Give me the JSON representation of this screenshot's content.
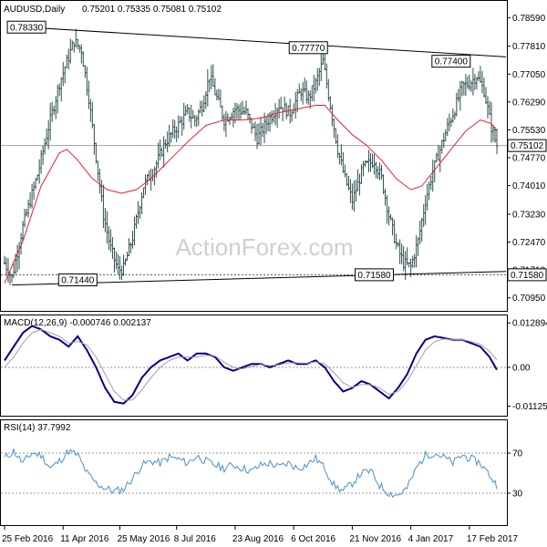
{
  "chart_data": [
    {
      "type": "bar",
      "subtype": "ohlc",
      "header": {
        "symbol": "AUDUSD,Daily",
        "ohlc": "0.75201 0.75335 0.75081 0.75102"
      },
      "watermark": "ActionForex.com",
      "ylim": [
        0.7067,
        0.7897
      ],
      "y_ticks": [
        {
          "value": 0.7859,
          "label": "0.78590"
        },
        {
          "value": 0.7781,
          "label": "0.77810"
        },
        {
          "value": 0.7705,
          "label": "0.77050"
        },
        {
          "value": 0.7629,
          "label": "0.76290"
        },
        {
          "value": 0.7553,
          "label": "0.75530"
        },
        {
          "value": 0.7477,
          "label": "0.74770"
        },
        {
          "value": 0.7401,
          "label": "0.74010"
        },
        {
          "value": 0.7323,
          "label": "0.73230"
        },
        {
          "value": 0.7247,
          "label": "0.72470"
        },
        {
          "value": 0.7171,
          "label": "0.71710"
        },
        {
          "value": 0.7095,
          "label": "0.70950"
        }
      ],
      "x_ticks": [
        "25 Feb 2016",
        "11 Apr 2016",
        "25 May 2016",
        "8 Jul 2016",
        "23 Aug 2016",
        "6 Oct 2016",
        "21 Nov 2016",
        "4 Jan 2017",
        "17 Feb 2017"
      ],
      "x_tick_index": [
        0,
        32,
        63,
        94,
        126,
        158,
        190,
        222,
        254
      ],
      "bar_count": 270,
      "price_anchors": [
        [
          0,
          0.719
        ],
        [
          4,
          0.715
        ],
        [
          10,
          0.729
        ],
        [
          18,
          0.743
        ],
        [
          24,
          0.756
        ],
        [
          30,
          0.768
        ],
        [
          38,
          0.7795
        ],
        [
          42,
          0.777
        ],
        [
          46,
          0.764
        ],
        [
          50,
          0.748
        ],
        [
          54,
          0.732
        ],
        [
          58,
          0.723
        ],
        [
          62,
          0.717
        ],
        [
          65,
          0.7175
        ],
        [
          70,
          0.726
        ],
        [
          76,
          0.74
        ],
        [
          82,
          0.745
        ],
        [
          88,
          0.752
        ],
        [
          94,
          0.756
        ],
        [
          100,
          0.76
        ],
        [
          104,
          0.758
        ],
        [
          108,
          0.762
        ],
        [
          112,
          0.77
        ],
        [
          116,
          0.764
        ],
        [
          120,
          0.758
        ],
        [
          126,
          0.761
        ],
        [
          132,
          0.76
        ],
        [
          138,
          0.753
        ],
        [
          144,
          0.758
        ],
        [
          150,
          0.762
        ],
        [
          156,
          0.76
        ],
        [
          162,
          0.766
        ],
        [
          166,
          0.764
        ],
        [
          170,
          0.768
        ],
        [
          174,
          0.774
        ],
        [
          178,
          0.762
        ],
        [
          182,
          0.75
        ],
        [
          186,
          0.742
        ],
        [
          190,
          0.736
        ],
        [
          196,
          0.745
        ],
        [
          202,
          0.747
        ],
        [
          206,
          0.742
        ],
        [
          210,
          0.732
        ],
        [
          214,
          0.724
        ],
        [
          218,
          0.719
        ],
        [
          222,
          0.718
        ],
        [
          226,
          0.725
        ],
        [
          230,
          0.736
        ],
        [
          234,
          0.744
        ],
        [
          238,
          0.75
        ],
        [
          242,
          0.756
        ],
        [
          246,
          0.761
        ],
        [
          250,
          0.767
        ],
        [
          254,
          0.768
        ],
        [
          258,
          0.77
        ],
        [
          262,
          0.766
        ],
        [
          266,
          0.756
        ],
        [
          269,
          0.751
        ]
      ],
      "moving_average": [
        [
          0,
          0.7135
        ],
        [
          10,
          0.725
        ],
        [
          20,
          0.74
        ],
        [
          30,
          0.749
        ],
        [
          34,
          0.75
        ],
        [
          40,
          0.747
        ],
        [
          48,
          0.742
        ],
        [
          56,
          0.739
        ],
        [
          64,
          0.738
        ],
        [
          72,
          0.739
        ],
        [
          80,
          0.742
        ],
        [
          90,
          0.747
        ],
        [
          100,
          0.752
        ],
        [
          110,
          0.7565
        ],
        [
          120,
          0.758
        ],
        [
          130,
          0.758
        ],
        [
          140,
          0.7585
        ],
        [
          150,
          0.76
        ],
        [
          160,
          0.761
        ],
        [
          170,
          0.762
        ],
        [
          175,
          0.762
        ],
        [
          182,
          0.758
        ],
        [
          190,
          0.754
        ],
        [
          198,
          0.751
        ],
        [
          206,
          0.747
        ],
        [
          214,
          0.742
        ],
        [
          222,
          0.739
        ],
        [
          228,
          0.74
        ],
        [
          236,
          0.745
        ],
        [
          244,
          0.75
        ],
        [
          252,
          0.755
        ],
        [
          260,
          0.758
        ],
        [
          266,
          0.757
        ],
        [
          269,
          0.755
        ]
      ],
      "trendlines": [
        {
          "from": [
            5,
            0.7835
          ],
          "to": [
            269,
            0.7752
          ]
        },
        {
          "from": [
            4,
            0.713
          ],
          "to": [
            269,
            0.7167
          ]
        }
      ],
      "support_level": 0.7158,
      "current_price": 0.75102,
      "price_labels": [
        {
          "text": "0.78330",
          "index": 12,
          "value": 0.7833
        },
        {
          "text": "0.77770",
          "index": 166,
          "value": 0.7777
        },
        {
          "text": "0.77400",
          "index": 244,
          "value": 0.774
        },
        {
          "text": "0.71440",
          "index": 40,
          "value": 0.7144
        },
        {
          "text": "0.71580",
          "index": 202,
          "value": 0.7158
        }
      ],
      "axis_labels": [
        {
          "text": "0.75102",
          "value": 0.75102
        },
        {
          "text": "0.71580",
          "value": 0.7158
        }
      ]
    },
    {
      "type": "line",
      "title": "MACD(12,26,9) -0.000746 0.002137",
      "ylim": [
        -0.0135,
        0.014
      ],
      "y_ticks": [
        {
          "value": 0.012894,
          "label": "0.012894"
        },
        {
          "value": 0.0,
          "label": "0.00"
        },
        {
          "value": -0.011253,
          "label": "-0.011253"
        }
      ],
      "zero_line": 0.0,
      "series": [
        {
          "color": "#00008b",
          "points": [
            [
              0,
              0.002
            ],
            [
              5,
              0.006
            ],
            [
              10,
              0.01
            ],
            [
              15,
              0.012
            ],
            [
              20,
              0.011
            ],
            [
              25,
              0.009
            ],
            [
              30,
              0.008
            ],
            [
              35,
              0.006
            ],
            [
              40,
              0.009
            ],
            [
              45,
              0.005
            ],
            [
              50,
              0.0
            ],
            [
              55,
              -0.006
            ],
            [
              60,
              -0.01
            ],
            [
              65,
              -0.0105
            ],
            [
              70,
              -0.008
            ],
            [
              75,
              -0.003
            ],
            [
              80,
              0.0
            ],
            [
              85,
              0.002
            ],
            [
              90,
              0.003
            ],
            [
              95,
              0.004
            ],
            [
              100,
              0.002
            ],
            [
              105,
              0.004
            ],
            [
              110,
              0.004
            ],
            [
              115,
              0.003
            ],
            [
              120,
              0.0
            ],
            [
              125,
              -0.001
            ],
            [
              130,
              0.0
            ],
            [
              135,
              0.001
            ],
            [
              140,
              0.001
            ],
            [
              145,
              0.0
            ],
            [
              150,
              0.001
            ],
            [
              155,
              0.002
            ],
            [
              160,
              0.001
            ],
            [
              165,
              0.001
            ],
            [
              170,
              0.002
            ],
            [
              175,
              0.0
            ],
            [
              180,
              -0.004
            ],
            [
              185,
              -0.007
            ],
            [
              190,
              -0.006
            ],
            [
              195,
              -0.004
            ],
            [
              200,
              -0.005
            ],
            [
              205,
              -0.007
            ],
            [
              210,
              -0.009
            ],
            [
              215,
              -0.006
            ],
            [
              220,
              -0.002
            ],
            [
              225,
              0.004
            ],
            [
              230,
              0.008
            ],
            [
              235,
              0.009
            ],
            [
              240,
              0.0085
            ],
            [
              245,
              0.008
            ],
            [
              250,
              0.008
            ],
            [
              255,
              0.007
            ],
            [
              260,
              0.006
            ],
            [
              265,
              0.003
            ],
            [
              269,
              -0.0007
            ]
          ]
        },
        {
          "color": "#a0a0a0",
          "points": [
            [
              0,
              0.0
            ],
            [
              5,
              0.003
            ],
            [
              10,
              0.007
            ],
            [
              15,
              0.01
            ],
            [
              20,
              0.011
            ],
            [
              25,
              0.01
            ],
            [
              30,
              0.009
            ],
            [
              35,
              0.007
            ],
            [
              40,
              0.0075
            ],
            [
              45,
              0.0065
            ],
            [
              50,
              0.003
            ],
            [
              55,
              -0.002
            ],
            [
              60,
              -0.007
            ],
            [
              65,
              -0.0095
            ],
            [
              70,
              -0.0095
            ],
            [
              75,
              -0.0065
            ],
            [
              80,
              -0.003
            ],
            [
              85,
              0.0
            ],
            [
              90,
              0.002
            ],
            [
              95,
              0.003
            ],
            [
              100,
              0.003
            ],
            [
              105,
              0.003
            ],
            [
              110,
              0.0035
            ],
            [
              115,
              0.0033
            ],
            [
              120,
              0.0015
            ],
            [
              125,
              0.0
            ],
            [
              130,
              -0.0005
            ],
            [
              135,
              0.0003
            ],
            [
              140,
              0.0008
            ],
            [
              145,
              0.0005
            ],
            [
              150,
              0.0007
            ],
            [
              155,
              0.0013
            ],
            [
              160,
              0.0013
            ],
            [
              165,
              0.0012
            ],
            [
              170,
              0.0016
            ],
            [
              175,
              0.001
            ],
            [
              180,
              -0.0015
            ],
            [
              185,
              -0.0045
            ],
            [
              190,
              -0.0058
            ],
            [
              195,
              -0.005
            ],
            [
              200,
              -0.005
            ],
            [
              205,
              -0.006
            ],
            [
              210,
              -0.0078
            ],
            [
              215,
              -0.007
            ],
            [
              220,
              -0.004
            ],
            [
              225,
              0.0005
            ],
            [
              230,
              0.005
            ],
            [
              235,
              0.0075
            ],
            [
              240,
              0.0082
            ],
            [
              245,
              0.0081
            ],
            [
              250,
              0.008
            ],
            [
              255,
              0.0075
            ],
            [
              260,
              0.0067
            ],
            [
              265,
              0.0047
            ],
            [
              269,
              0.0021
            ]
          ]
        }
      ]
    },
    {
      "type": "line",
      "title": "RSI(14) 37.7992",
      "ylim": [
        0,
        100
      ],
      "y_ticks": [
        {
          "value": 70,
          "label": "70"
        },
        {
          "value": 30,
          "label": "30"
        }
      ],
      "levels": [
        70,
        30
      ],
      "series": [
        {
          "color": "#4a90c8",
          "points": [
            [
              0,
              65
            ],
            [
              5,
              72
            ],
            [
              10,
              60
            ],
            [
              15,
              70
            ],
            [
              20,
              68
            ],
            [
              25,
              55
            ],
            [
              30,
              62
            ],
            [
              35,
              72
            ],
            [
              40,
              68
            ],
            [
              45,
              50
            ],
            [
              50,
              40
            ],
            [
              55,
              35
            ],
            [
              60,
              32
            ],
            [
              65,
              34
            ],
            [
              70,
              45
            ],
            [
              75,
              58
            ],
            [
              80,
              62
            ],
            [
              85,
              60
            ],
            [
              90,
              66
            ],
            [
              95,
              64
            ],
            [
              100,
              60
            ],
            [
              105,
              67
            ],
            [
              110,
              62
            ],
            [
              115,
              58
            ],
            [
              120,
              55
            ],
            [
              125,
              58
            ],
            [
              130,
              55
            ],
            [
              135,
              52
            ],
            [
              140,
              58
            ],
            [
              145,
              60
            ],
            [
              150,
              56
            ],
            [
              155,
              60
            ],
            [
              160,
              55
            ],
            [
              165,
              58
            ],
            [
              170,
              65
            ],
            [
              175,
              55
            ],
            [
              180,
              38
            ],
            [
              185,
              32
            ],
            [
              190,
              40
            ],
            [
              195,
              50
            ],
            [
              200,
              52
            ],
            [
              205,
              38
            ],
            [
              210,
              30
            ],
            [
              215,
              28
            ],
            [
              220,
              35
            ],
            [
              225,
              55
            ],
            [
              230,
              68
            ],
            [
              235,
              70
            ],
            [
              240,
              66
            ],
            [
              245,
              60
            ],
            [
              250,
              68
            ],
            [
              255,
              64
            ],
            [
              260,
              60
            ],
            [
              265,
              48
            ],
            [
              269,
              38
            ]
          ]
        }
      ]
    }
  ]
}
